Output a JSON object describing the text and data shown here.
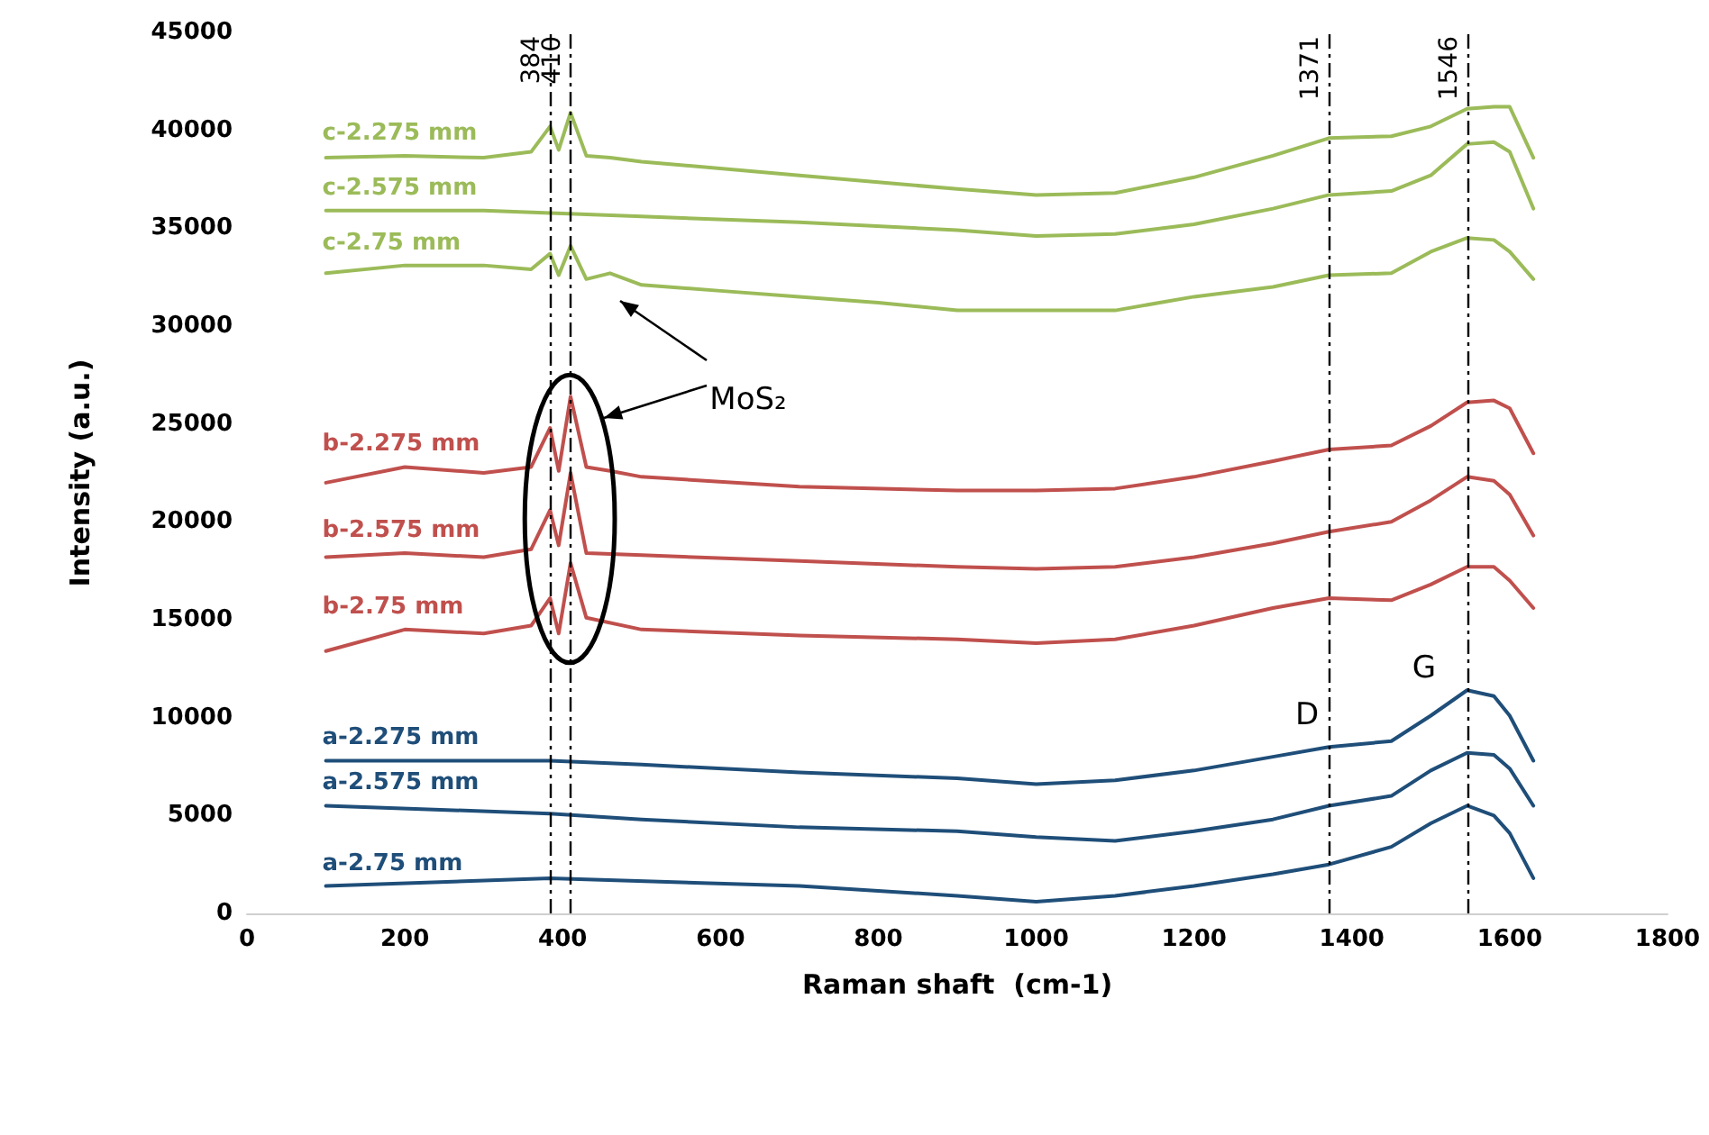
{
  "chart_data": {
    "type": "line",
    "xlabel": "Raman shaft  (cm-1)",
    "ylabel": "Intensity (a.u.)",
    "xlim": [
      0,
      1800
    ],
    "xticks": [
      0,
      200,
      400,
      600,
      800,
      1000,
      1200,
      1400,
      1600,
      1800
    ],
    "ylim": [
      0,
      45000
    ],
    "yticks": [
      0,
      5000,
      10000,
      15000,
      20000,
      25000,
      30000,
      35000,
      40000,
      45000
    ],
    "grid": false,
    "legend": false,
    "line_style": "solid",
    "series": [
      {
        "name": "c-2.275 mm",
        "color": "#9bbb59",
        "x": [
          100,
          200,
          300,
          360,
          384,
          395,
          410,
          430,
          460,
          500,
          700,
          900,
          1000,
          1100,
          1200,
          1300,
          1371,
          1450,
          1500,
          1546,
          1580,
          1600,
          1630
        ],
        "values": [
          38600,
          38700,
          38600,
          38900,
          40200,
          39000,
          40900,
          38700,
          38600,
          38400,
          37700,
          37000,
          36700,
          36800,
          37600,
          38700,
          39600,
          39700,
          40200,
          41100,
          41200,
          41200,
          38600
        ]
      },
      {
        "name": "c-2.575 mm",
        "color": "#9bbb59",
        "x": [
          100,
          300,
          500,
          700,
          900,
          1000,
          1100,
          1200,
          1300,
          1371,
          1450,
          1500,
          1546,
          1580,
          1600,
          1630
        ],
        "values": [
          35900,
          35900,
          35600,
          35300,
          34900,
          34600,
          34700,
          35200,
          36000,
          36700,
          36900,
          37700,
          39300,
          39400,
          38900,
          36000
        ]
      },
      {
        "name": "c-2.75 mm",
        "color": "#9bbb59",
        "x": [
          100,
          200,
          300,
          360,
          384,
          395,
          410,
          430,
          460,
          500,
          600,
          700,
          800,
          900,
          1000,
          1100,
          1200,
          1300,
          1371,
          1450,
          1500,
          1546,
          1580,
          1600,
          1630
        ],
        "values": [
          32700,
          33100,
          33100,
          32900,
          33700,
          32600,
          34100,
          32400,
          32700,
          32100,
          31800,
          31500,
          31200,
          30800,
          30800,
          30800,
          31500,
          32000,
          32600,
          32700,
          33800,
          34500,
          34400,
          33800,
          32400
        ]
      },
      {
        "name": "b-2.275 mm",
        "color": "#c0504d",
        "x": [
          100,
          200,
          300,
          360,
          384,
          395,
          410,
          430,
          460,
          500,
          700,
          900,
          1000,
          1100,
          1200,
          1300,
          1371,
          1450,
          1500,
          1546,
          1580,
          1600,
          1630
        ],
        "values": [
          22000,
          22800,
          22500,
          22800,
          24800,
          22600,
          26400,
          22800,
          22600,
          22300,
          21800,
          21600,
          21600,
          21700,
          22300,
          23100,
          23700,
          23900,
          24900,
          26100,
          26200,
          25800,
          23500
        ]
      },
      {
        "name": "b-2.575 mm",
        "color": "#c0504d",
        "x": [
          100,
          200,
          300,
          360,
          384,
          395,
          410,
          430,
          500,
          700,
          900,
          1000,
          1100,
          1200,
          1300,
          1371,
          1450,
          1500,
          1546,
          1580,
          1600,
          1630
        ],
        "values": [
          18200,
          18400,
          18200,
          18600,
          20600,
          18800,
          22500,
          18400,
          18300,
          18000,
          17700,
          17600,
          17700,
          18200,
          18900,
          19500,
          20000,
          21100,
          22300,
          22100,
          21400,
          19300
        ]
      },
      {
        "name": "b-2.75 mm",
        "color": "#c0504d",
        "x": [
          100,
          200,
          300,
          360,
          384,
          395,
          410,
          430,
          500,
          700,
          900,
          1000,
          1100,
          1200,
          1300,
          1371,
          1450,
          1500,
          1546,
          1580,
          1600,
          1630
        ],
        "values": [
          13400,
          14500,
          14300,
          14700,
          16100,
          14300,
          17900,
          15100,
          14500,
          14200,
          14000,
          13800,
          14000,
          14700,
          15600,
          16100,
          16000,
          16800,
          17700,
          17700,
          17000,
          15600
        ]
      },
      {
        "name": "a-2.275 mm",
        "color": "#1f4e79",
        "x": [
          100,
          384,
          500,
          700,
          900,
          1000,
          1100,
          1200,
          1300,
          1371,
          1450,
          1500,
          1546,
          1580,
          1600,
          1630
        ],
        "values": [
          7800,
          7800,
          7600,
          7200,
          6900,
          6600,
          6800,
          7300,
          8000,
          8500,
          8800,
          10100,
          11400,
          11100,
          10100,
          7800
        ]
      },
      {
        "name": "a-2.575 mm",
        "color": "#1f4e79",
        "x": [
          100,
          384,
          500,
          700,
          900,
          1000,
          1100,
          1200,
          1300,
          1371,
          1450,
          1500,
          1546,
          1580,
          1600,
          1630
        ],
        "values": [
          5500,
          5100,
          4800,
          4400,
          4200,
          3900,
          3700,
          4200,
          4800,
          5500,
          6000,
          7300,
          8200,
          8100,
          7400,
          5500
        ]
      },
      {
        "name": "a-2.75 mm",
        "color": "#1f4e79",
        "x": [
          100,
          384,
          700,
          900,
          1000,
          1100,
          1200,
          1300,
          1371,
          1450,
          1500,
          1546,
          1580,
          1600,
          1630
        ],
        "values": [
          1400,
          1800,
          1400,
          900,
          600,
          900,
          1400,
          2000,
          2500,
          3400,
          4600,
          5500,
          5000,
          4100,
          1800
        ]
      }
    ],
    "ref_lines": [
      {
        "axis": "x",
        "value": 384,
        "label": "384",
        "color": "#000000",
        "line_style": "dashed"
      },
      {
        "axis": "x",
        "value": 410,
        "label": "410",
        "color": "#000000",
        "line_style": "dashed"
      },
      {
        "axis": "x",
        "value": 1371,
        "label": "1371",
        "color": "#000000",
        "line_style": "dashed"
      },
      {
        "axis": "x",
        "value": 1546,
        "label": "1546",
        "color": "#000000",
        "line_style": "dashed"
      }
    ],
    "annotations": [
      "MoS₂",
      "D",
      "G"
    ]
  }
}
